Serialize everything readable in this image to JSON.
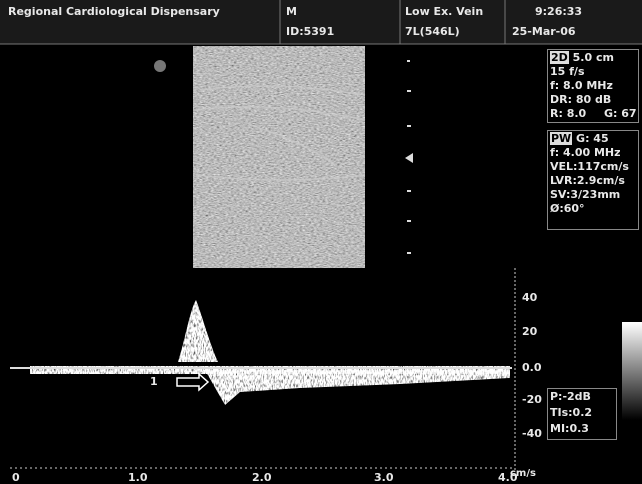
{
  "header": {
    "facility": "Regional Cardiological Dispensary",
    "patient_sex": "M",
    "patient_id": "ID:5391",
    "exam": "Low Ex. Vein",
    "probe": "7L(546L)",
    "time": "9:26:33",
    "date": "25-Mar-06"
  },
  "panel_2d": {
    "mode": "2D",
    "depth": "5.0 cm",
    "frame_rate": "15 f/s",
    "frequency": "f: 8.0 MHz",
    "dynamic_range": "DR: 80 dB",
    "r": "R: 8.0",
    "gain": "G: 67"
  },
  "panel_pw": {
    "mode": "PW",
    "gain": "G: 45",
    "frequency": "f: 4.00 MHz",
    "velocity": "VEL:117cm/s",
    "lvr": "LVR:2.9cm/s",
    "sample_volume": "SV:3/23mm",
    "angle": "Ø:60°"
  },
  "panel_output": {
    "power": "P:-2dB",
    "tis": "TIs:0.2",
    "mi": "MI:0.3"
  },
  "doppler_scale": {
    "labels": [
      "40",
      "20",
      "0.0",
      "-20",
      "-40"
    ],
    "unit": "cm/s"
  },
  "time_axis": {
    "labels": [
      "0",
      "1.0",
      "2.0",
      "3.0",
      "4.0"
    ]
  },
  "marker": "1"
}
